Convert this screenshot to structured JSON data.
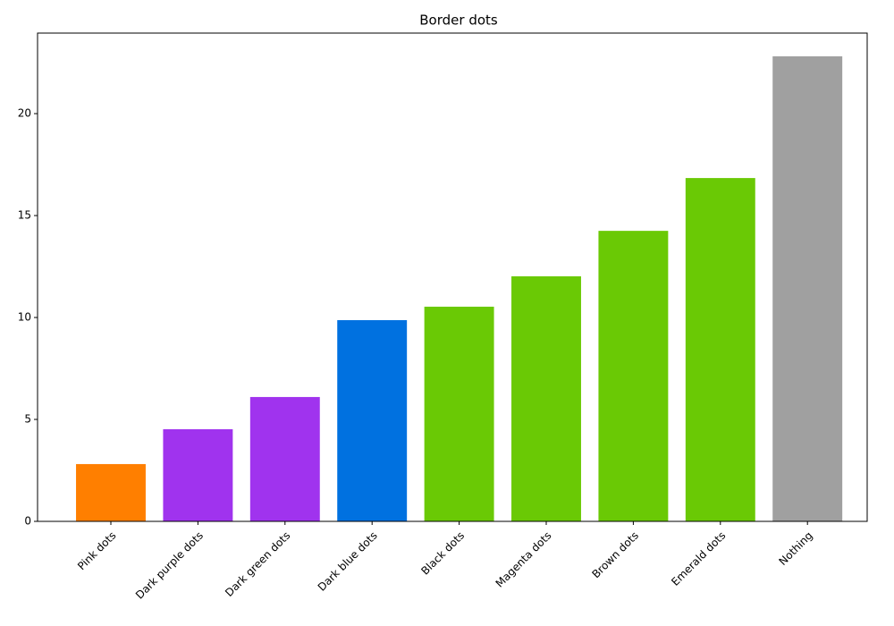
{
  "chart_data": {
    "type": "bar",
    "title": "Border dots",
    "categories": [
      "Pink dots",
      "Dark purple dots",
      "Dark green dots",
      "Dark blue dots",
      "Black dots",
      "Magenta dots",
      "Brown dots",
      "Emerald dots",
      "Nothing"
    ],
    "values": [
      2.81,
      4.52,
      6.1,
      9.87,
      10.53,
      12.02,
      14.25,
      16.84,
      22.81
    ],
    "colors": [
      "#ff7f00",
      "#a033ee",
      "#a033ee",
      "#0071e0",
      "#6ac905",
      "#6ac905",
      "#6ac905",
      "#6ac905",
      "#a0a0a0"
    ],
    "ylim": [
      0,
      23.95
    ],
    "yticks": [
      0,
      5,
      10,
      15,
      20
    ],
    "grid": false
  }
}
